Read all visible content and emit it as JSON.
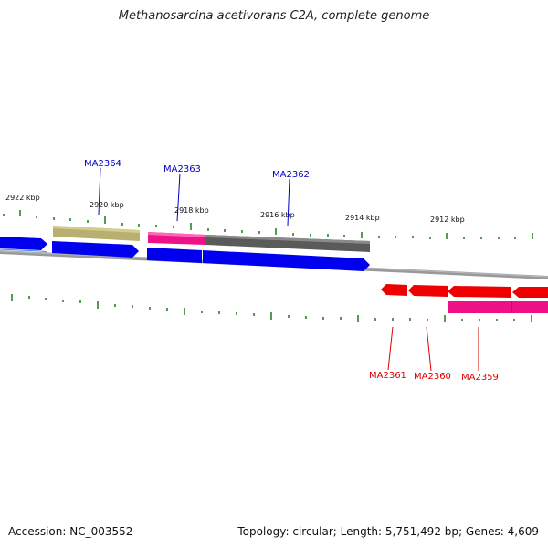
{
  "title": "Methanosarcina acetivorans C2A, complete genome",
  "footer": {
    "accession": "Accession: NC_003552",
    "summary": "Topology: circular; Length: 5,751,492 bp; Genes: 4,609"
  },
  "colors": {
    "forward_label": "#0000cc",
    "reverse_label": "#dd0000",
    "tick": "#1a7a1a",
    "backbone": "#888888",
    "blue_gene": "#0000ee",
    "red_gene": "#ee0000",
    "olive": "#b8b070",
    "magenta": "#ee1188",
    "gray_gene": "#666666"
  },
  "kbp_labels": [
    "2922 kbp",
    "2920 kbp",
    "2918 kbp",
    "2916 kbp",
    "2914 kbp",
    "2912 kbp"
  ],
  "forward_genes": [
    "MA2364",
    "MA2363",
    "MA2362"
  ],
  "reverse_genes": [
    "MA2361",
    "MA2360",
    "MA2359"
  ]
}
